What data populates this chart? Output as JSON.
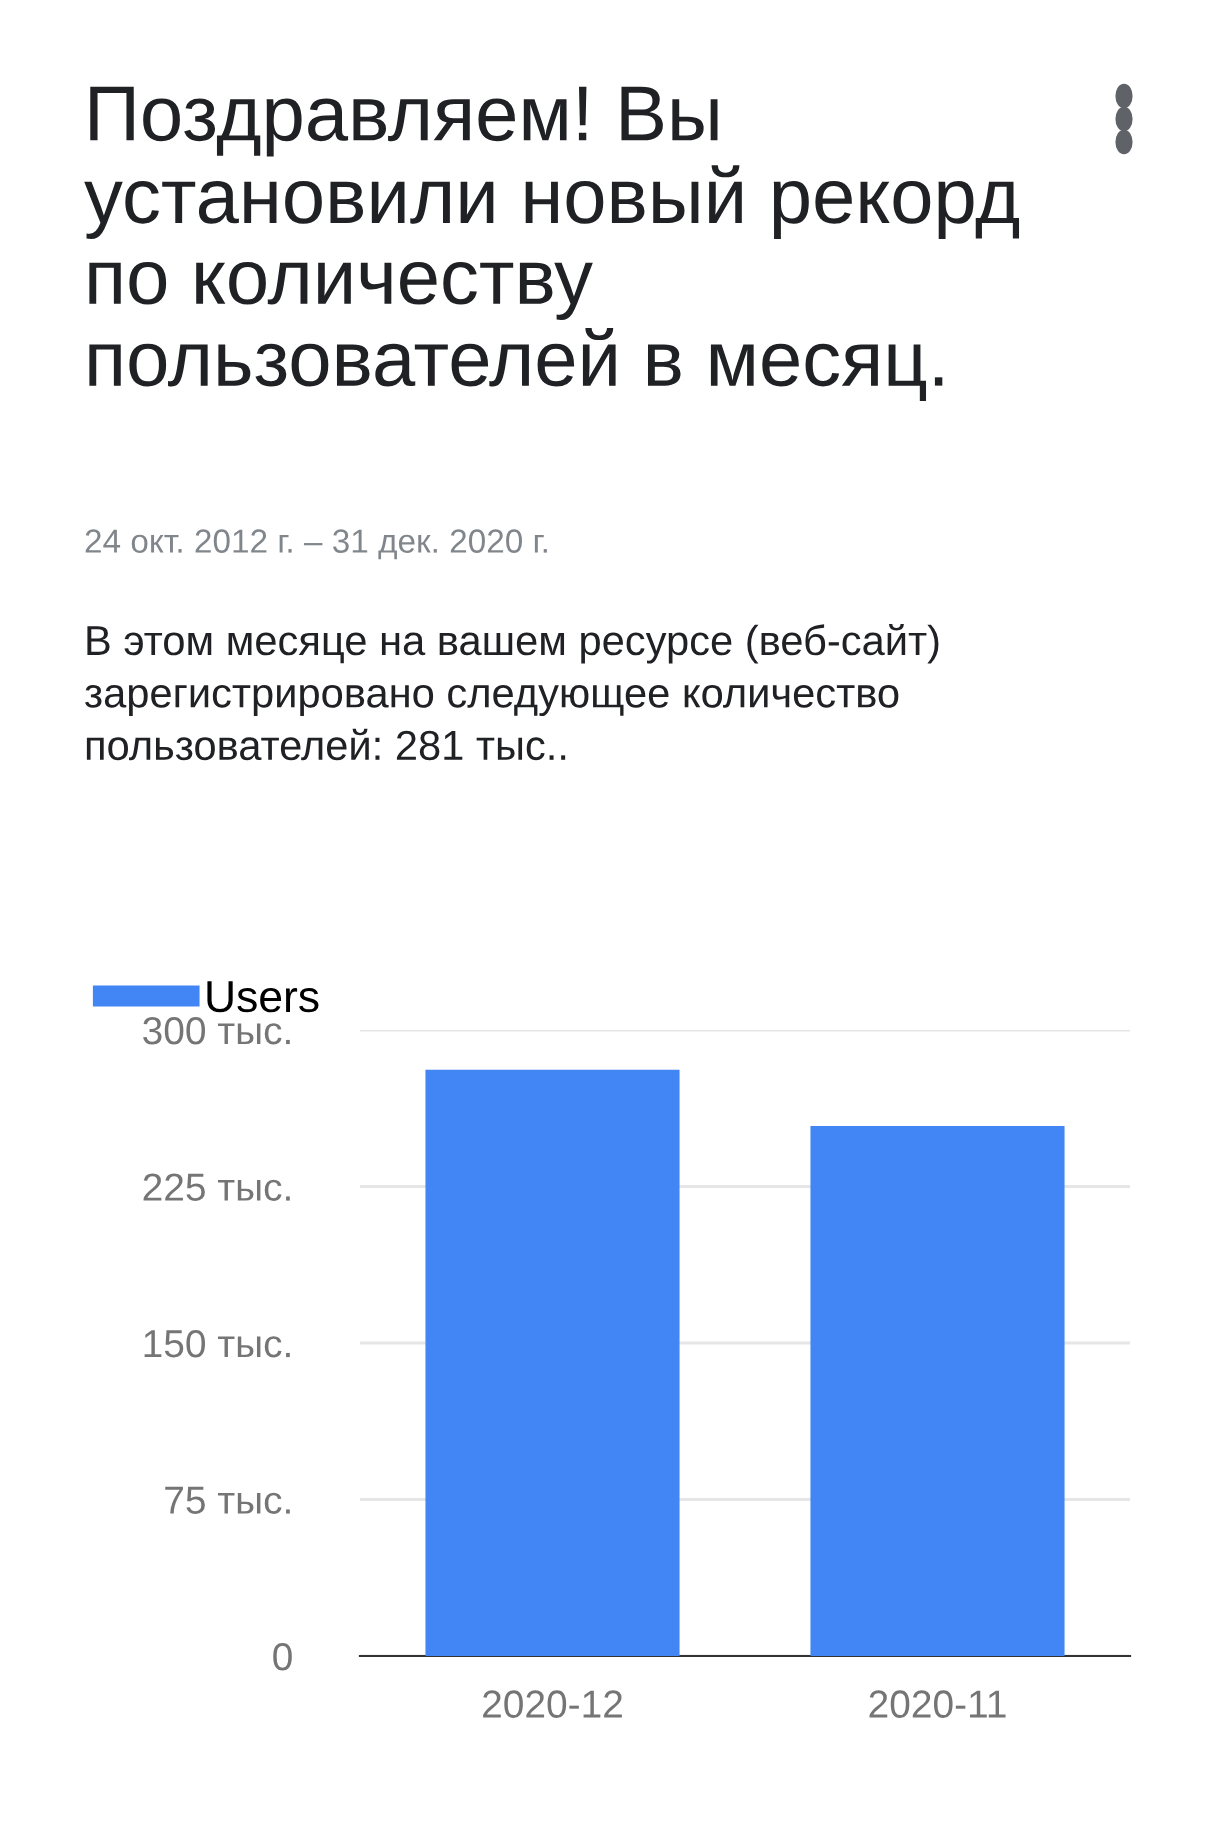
{
  "chart_data": {
    "type": "bar",
    "title": "Поздравляем! Вы\nустановили новый рекорд\nпо количеству\nпользователей в месяц.",
    "subtitle": "24 окт. 2012 г. – 31 дек. 2020 г.",
    "annotations": [
      "В этом месяце на вашем ресурсе (веб-сайт)\nзарегистрировано следующее количество\nпользователей: 281 тыс.."
    ],
    "categories": [
      "2020-12",
      "2020-11"
    ],
    "series": [
      {
        "name": "Users",
        "color": "#4285f4",
        "values": [
          281,
          254
        ]
      }
    ],
    "ylim": [
      0,
      300
    ],
    "yticks": [
      {
        "value": 0,
        "label": "0"
      },
      {
        "value": 75,
        "label": "75 тыс."
      },
      {
        "value": 150,
        "label": "150 тыс."
      },
      {
        "value": 225,
        "label": "225 тыс."
      },
      {
        "value": 300,
        "label": "300 тыс."
      }
    ],
    "grid": "y",
    "legend": "top left"
  }
}
